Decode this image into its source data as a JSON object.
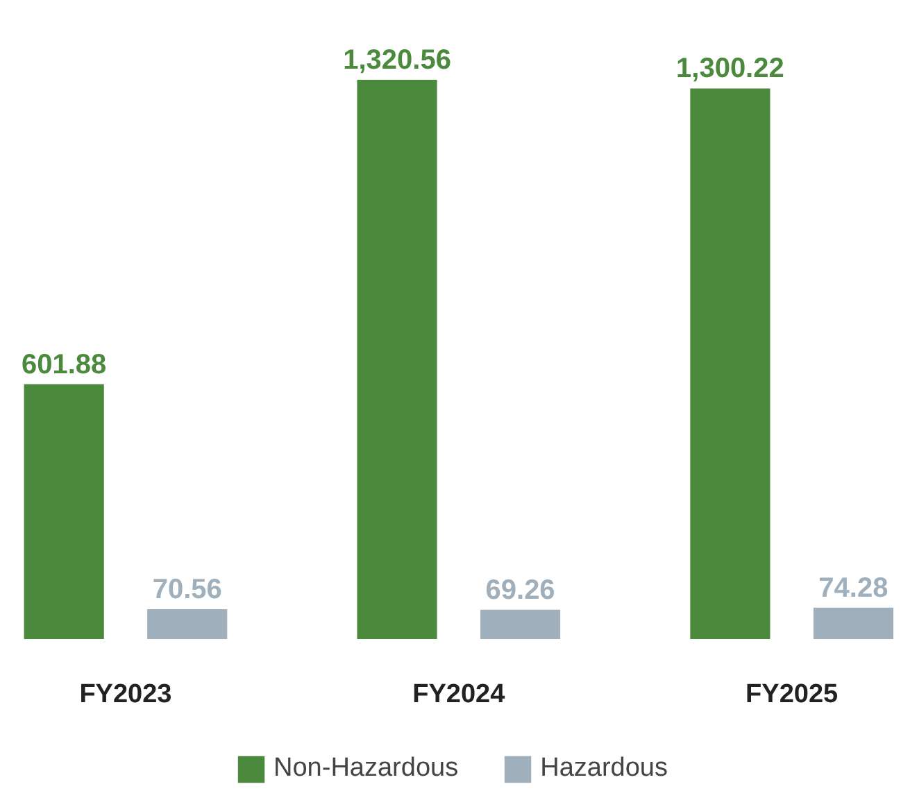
{
  "chart_data": {
    "type": "bar",
    "categories": [
      "FY2023",
      "FY2024",
      "FY2025"
    ],
    "series": [
      {
        "name": "Non-Hazardous",
        "color": "#4b8a3c",
        "values": [
          601.88,
          1320.56,
          1300.22
        ],
        "value_labels": [
          "601.88",
          "1,320.56",
          "1,300.22"
        ]
      },
      {
        "name": "Hazardous",
        "color": "#9fb0bc",
        "values": [
          70.56,
          69.26,
          74.28
        ],
        "value_labels": [
          "70.56",
          "69.26",
          "74.28"
        ]
      }
    ],
    "legend": "bottom"
  }
}
